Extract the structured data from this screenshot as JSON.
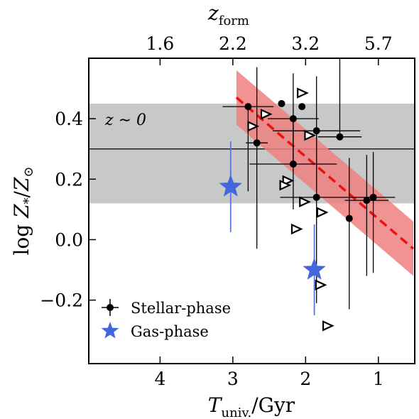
{
  "chart_data": {
    "type": "scatter",
    "xlabel": "Tuniv./Gyr",
    "xlabel_parts": {
      "main": "T",
      "sub": "univ.",
      "rest": "/Gyr"
    },
    "ylabel": "log Z*/Z⊙",
    "ylabel_parts": {
      "prefix": "log ",
      "main": "Z",
      "star": "*",
      "rest": "/Z",
      "sun": "⊙"
    },
    "top_xlabel": "zform",
    "top_xlabel_parts": {
      "main": "z",
      "sub": "form"
    },
    "xlim": [
      4.98,
      0.5
    ],
    "ylim": [
      -0.41,
      0.6
    ],
    "x_reversed": true,
    "x_ticks": [
      {
        "value": 4,
        "label": "4"
      },
      {
        "value": 3,
        "label": "3"
      },
      {
        "value": 2,
        "label": "2"
      },
      {
        "value": 1,
        "label": "1"
      }
    ],
    "y_ticks": [
      {
        "value": 0.4,
        "label": "0.4"
      },
      {
        "value": 0.2,
        "label": "0.2"
      },
      {
        "value": 0.0,
        "label": "0.0"
      },
      {
        "value": -0.2,
        "label": "−0.2"
      }
    ],
    "top_ticks": [
      {
        "t": 4.0,
        "label": "1.6"
      },
      {
        "t": 3.0,
        "label": "2.2"
      },
      {
        "t": 2.0,
        "label": "3.2"
      },
      {
        "t": 1.0,
        "label": "5.7"
      }
    ],
    "z0_band": {
      "y_low": 0.12,
      "y_high": 0.45,
      "y_line": 0.3,
      "color": "#c8c8c8",
      "label": "z ∼ 0"
    },
    "fit": {
      "x_start": 2.95,
      "x_end": 0.52,
      "y_start": 0.47,
      "y_end": -0.03,
      "half_width": 0.09,
      "line_color": "#ee1111",
      "band_color": "#f08080"
    },
    "stellar_phase": [
      {
        "x": 2.79,
        "y": 0.44,
        "xerr": 0.35,
        "ylo": 0.28,
        "yhi": 0.0
      },
      {
        "x": 2.67,
        "y": 0.32,
        "xerr": 0.15,
        "ylo": 0.35,
        "yhi": 0.25
      },
      {
        "x": 2.33,
        "y": 0.45,
        "xerr": 0.0,
        "ylo": 0.0,
        "yhi": 0.0
      },
      {
        "x": 2.17,
        "y": 0.4,
        "xerr": 0.35,
        "ylo": 0.3,
        "yhi": 0.0
      },
      {
        "x": 2.17,
        "y": 0.25,
        "xerr": 0.6,
        "ylo": 0.0,
        "yhi": 0.3
      },
      {
        "x": 2.05,
        "y": 0.44,
        "xerr": 0.0,
        "ylo": 0.0,
        "yhi": 0.0
      },
      {
        "x": 1.85,
        "y": 0.36,
        "xerr": 0.6,
        "ylo": 0.2,
        "yhi": 0.0
      },
      {
        "x": 1.85,
        "y": 0.14,
        "xerr": 0.5,
        "ylo": 0.35,
        "yhi": 0.4
      },
      {
        "x": 1.53,
        "y": 0.34,
        "xerr": 0.3,
        "ylo": 0.0,
        "yhi": 0.3
      },
      {
        "x": 1.4,
        "y": 0.07,
        "xerr": 0.0,
        "ylo": 0.3,
        "yhi": 0.2
      },
      {
        "x": 1.16,
        "y": 0.13,
        "xerr": 0.3,
        "ylo": 0.25,
        "yhi": 0.15
      },
      {
        "x": 1.07,
        "y": 0.14,
        "xerr": 0.3,
        "ylo": 0.25,
        "yhi": 0.15
      }
    ],
    "gas_phase": [
      {
        "x": 3.03,
        "y": 0.175,
        "ylo": 0.15,
        "yhi": 0.15
      },
      {
        "x": 1.88,
        "y": -0.1,
        "ylo": 0.15,
        "yhi": 0.15
      }
    ],
    "limits": [
      {
        "x": 2.05,
        "y": 0.485
      },
      {
        "x": 2.55,
        "y": 0.415
      },
      {
        "x": 2.73,
        "y": 0.375
      },
      {
        "x": 1.95,
        "y": 0.345
      },
      {
        "x": 2.25,
        "y": 0.195
      },
      {
        "x": 2.29,
        "y": 0.18
      },
      {
        "x": 2.02,
        "y": 0.125
      },
      {
        "x": 1.78,
        "y": 0.09
      },
      {
        "x": 2.13,
        "y": 0.035
      },
      {
        "x": 1.8,
        "y": -0.15
      },
      {
        "x": 1.7,
        "y": -0.285
      }
    ],
    "legend": {
      "position": "lower-left",
      "entries": [
        {
          "key": "stellar",
          "label": "Stellar-phase"
        },
        {
          "key": "gas",
          "label": "Gas-phase"
        }
      ]
    },
    "colors": {
      "gas": "#4466dd",
      "gas_err": "#5577dd",
      "stellar": "#000000"
    }
  }
}
